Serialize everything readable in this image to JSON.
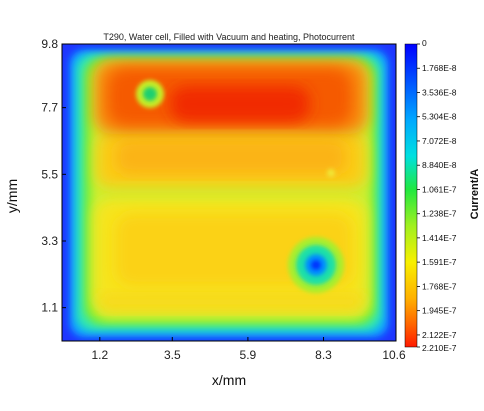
{
  "chart_data": {
    "type": "heatmap",
    "title": "T290, Water cell, Filled with Vacuum and heating, Photocurrent",
    "xlabel": "x/mm",
    "ylabel": "y/mm",
    "colorbar_label": "Current/A",
    "xlim": [
      0.0,
      10.6
    ],
    "ylim": [
      0.0,
      9.8
    ],
    "x_ticks": [
      "1.2",
      "3.5",
      "5.9",
      "8.3",
      "10.6"
    ],
    "x_tick_values": [
      1.2,
      3.5,
      5.9,
      8.3,
      10.6
    ],
    "y_ticks": [
      "9.8",
      "7.7",
      "5.5",
      "3.3",
      "1.1"
    ],
    "y_tick_values": [
      9.8,
      7.7,
      5.5,
      3.3,
      1.1
    ],
    "colorbar_ticks": [
      "0",
      "1.768E-8",
      "3.536E-8",
      "5.304E-8",
      "7.072E-8",
      "8.840E-8",
      "1.061E-7",
      "1.238E-7",
      "1.414E-7",
      "1.591E-7",
      "1.768E-7",
      "1.945E-7",
      "2.122E-7",
      "2.210E-7"
    ],
    "colorbar_tick_values": [
      0,
      1.768e-08,
      3.536e-08,
      5.304e-08,
      7.072e-08,
      8.84e-08,
      1.061e-07,
      1.238e-07,
      1.414e-07,
      1.591e-07,
      1.768e-07,
      1.945e-07,
      2.122e-07,
      2.21e-07
    ],
    "color_range": [
      0,
      2.21e-07
    ],
    "colormap": [
      "#0000ff",
      "#0090ff",
      "#00e5e5",
      "#35e835",
      "#d8f020",
      "#ffb000",
      "#ff3000"
    ],
    "features": [
      {
        "name": "upper-band",
        "x_range": [
          1.2,
          10.0
        ],
        "y_range": [
          7.0,
          9.4
        ],
        "value": 2.05e-07
      },
      {
        "name": "middle-band",
        "x_range": [
          1.2,
          10.0
        ],
        "y_range": [
          4.9,
          7.0
        ],
        "value": 1.76e-07
      },
      {
        "name": "lower-band",
        "x_range": [
          1.2,
          10.0
        ],
        "y_range": [
          0.6,
          4.8
        ],
        "value": 1.68e-07
      },
      {
        "name": "low-spot-1",
        "x": 2.9,
        "y": 8.1,
        "value": 1e-07
      },
      {
        "name": "low-spot-2",
        "x": 8.1,
        "y": 2.4,
        "value": 4.5e-08
      }
    ]
  }
}
